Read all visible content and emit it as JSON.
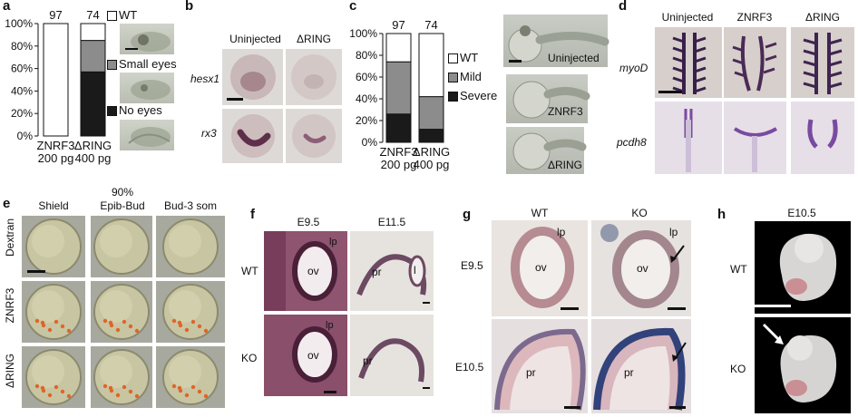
{
  "panels": {
    "a": "a",
    "b": "b",
    "c": "c",
    "d": "d",
    "e": "e",
    "f": "f",
    "g": "g",
    "h": "h"
  },
  "chart_a": {
    "type": "bar",
    "categories": [
      "ZNRF3\n200 pg",
      "ΔRING\n400 pg"
    ],
    "category_lines": [
      [
        "ZNRF3",
        "200 pg"
      ],
      [
        "ΔRING",
        "400 pg"
      ]
    ],
    "counts": [
      "97",
      "74"
    ],
    "y_ticks": [
      "0%",
      "20%",
      "40%",
      "60%",
      "80%",
      "100%"
    ],
    "ylim": [
      0,
      100
    ],
    "series": [
      {
        "name": "No eyes",
        "values": [
          0,
          57
        ],
        "color": "#1a1a1a"
      },
      {
        "name": "Small eyes",
        "values": [
          0,
          28
        ],
        "color": "#8c8c8c"
      },
      {
        "name": "WT",
        "values": [
          100,
          15
        ],
        "color": "#ffffff"
      }
    ],
    "legend": [
      "WT",
      "Small eyes",
      "No eyes"
    ]
  },
  "chart_c": {
    "type": "bar",
    "categories": [
      "ZNRF3\n200 pg",
      "ΔRING\n400 pg"
    ],
    "category_lines": [
      [
        "ZNRF3",
        "200 pg"
      ],
      [
        "ΔRING",
        "400 pg"
      ]
    ],
    "counts": [
      "97",
      "74"
    ],
    "y_ticks": [
      "0%",
      "20%",
      "40%",
      "60%",
      "80%",
      "100%"
    ],
    "ylim": [
      0,
      100
    ],
    "series": [
      {
        "name": "Severe",
        "values": [
          26,
          12
        ],
        "color": "#1a1a1a"
      },
      {
        "name": "Mild",
        "values": [
          48,
          30
        ],
        "color": "#8c8c8c"
      },
      {
        "name": "WT",
        "values": [
          26,
          58
        ],
        "color": "#ffffff"
      }
    ],
    "legend": [
      "WT",
      "Mild",
      "Severe"
    ]
  },
  "panel_b": {
    "columns": [
      "Uninjected",
      "ΔRING"
    ],
    "rows": [
      "hesx1",
      "rx3"
    ]
  },
  "panel_c_images": [
    "Uninjected",
    "ZNRF3",
    "ΔRING"
  ],
  "panel_d": {
    "columns": [
      "Uninjected",
      "ZNRF3",
      "ΔRING"
    ],
    "rows": [
      "myoD",
      "pcdh8"
    ]
  },
  "panel_e": {
    "header_top": "90%",
    "columns": [
      "Shield",
      "Epib-Bud",
      "Bud-3 som"
    ],
    "rows": [
      "Dextran",
      "ZNRF3",
      "ΔRING"
    ]
  },
  "panel_f": {
    "columns": [
      "E9.5",
      "E11.5"
    ],
    "rows": [
      "WT",
      "KO"
    ],
    "labels": {
      "lp": "lp",
      "ov": "ov",
      "pr": "pr",
      "l": "l"
    }
  },
  "panel_g": {
    "columns": [
      "WT",
      "KO"
    ],
    "rows": [
      "E9.5",
      "E10.5"
    ],
    "labels": {
      "lp": "lp",
      "ov": "ov",
      "pr": "pr"
    }
  },
  "panel_h": {
    "title": "E10.5",
    "rows": [
      "WT",
      "KO"
    ]
  },
  "colors": {
    "bar_black": "#1a1a1a",
    "bar_grey": "#8c8c8c",
    "zebrafish_bg": "#bfc2bb",
    "tissue_purple": "#6a3d6e",
    "ish_bg": "#d9cfc7",
    "embryo_bg": "#000000"
  }
}
